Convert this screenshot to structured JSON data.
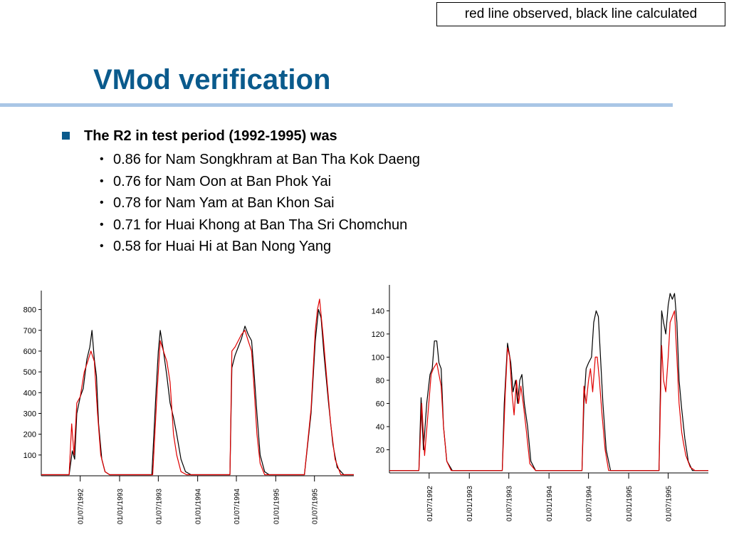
{
  "legend_note": "red line observed, black line calculated",
  "slide_title": "VMod verification",
  "main_bullet": "The R2 in test period (1992-1995) was",
  "sub_bullets": [
    "0.86 for Nam Songkhram at Ban Tha Kok Daeng",
    "0.76 for Nam Oon at Ban Phok Yai",
    "0.78 for Nam Yam at Ban Khon Sai",
    "0.71 for Huai Khong at Ban Tha Sri Chomchun",
    "0.58 for Huai Hi at Ban Nong Yang"
  ],
  "colors": {
    "title": "#0a5a8c",
    "rule": "#a9c6e6",
    "observed": "#e00000",
    "calculated": "#000000"
  },
  "chart_data": [
    {
      "type": "line",
      "title": "",
      "xlabel": "",
      "ylabel": "",
      "ylim": [
        0,
        850
      ],
      "yticks": [
        100,
        200,
        300,
        400,
        500,
        600,
        700,
        800
      ],
      "xlim": [
        "1992-01-01",
        "1996-01-01"
      ],
      "xticks": [
        "01/07/1992",
        "01/01/1993",
        "01/07/1993",
        "01/01/1994",
        "01/07/1994",
        "01/01/1995",
        "01/07/1995"
      ],
      "grid": false,
      "series": [
        {
          "color": "#000000",
          "points": [
            [
              "1992-01-01",
              5
            ],
            [
              "1992-05-10",
              5
            ],
            [
              "1992-05-25",
              120
            ],
            [
              "1992-06-05",
              80
            ],
            [
              "1992-06-15",
              300
            ],
            [
              "1992-07-01",
              380
            ],
            [
              "1992-07-15",
              420
            ],
            [
              "1992-08-01",
              560
            ],
            [
              "1992-08-15",
              620
            ],
            [
              "1992-08-25",
              700
            ],
            [
              "1992-09-05",
              560
            ],
            [
              "1992-09-15",
              480
            ],
            [
              "1992-09-25",
              250
            ],
            [
              "1992-10-10",
              80
            ],
            [
              "1992-10-25",
              20
            ],
            [
              "1992-11-15",
              5
            ],
            [
              "1993-06-01",
              5
            ],
            [
              "1993-06-20",
              400
            ],
            [
              "1993-07-01",
              600
            ],
            [
              "1993-07-10",
              700
            ],
            [
              "1993-07-25",
              600
            ],
            [
              "1993-08-10",
              480
            ],
            [
              "1993-08-25",
              350
            ],
            [
              "1993-09-10",
              280
            ],
            [
              "1993-09-25",
              200
            ],
            [
              "1993-10-15",
              80
            ],
            [
              "1993-11-05",
              20
            ],
            [
              "1993-12-01",
              5
            ],
            [
              "1994-06-01",
              5
            ],
            [
              "1994-06-10",
              520
            ],
            [
              "1994-06-25",
              580
            ],
            [
              "1994-07-10",
              620
            ],
            [
              "1994-07-25",
              660
            ],
            [
              "1994-08-10",
              720
            ],
            [
              "1994-08-25",
              680
            ],
            [
              "1994-09-10",
              650
            ],
            [
              "1994-09-20",
              520
            ],
            [
              "1994-10-05",
              300
            ],
            [
              "1994-10-20",
              100
            ],
            [
              "1994-11-10",
              20
            ],
            [
              "1994-12-01",
              5
            ],
            [
              "1995-05-15",
              5
            ],
            [
              "1995-06-15",
              300
            ],
            [
              "1995-07-05",
              650
            ],
            [
              "1995-07-20",
              800
            ],
            [
              "1995-08-01",
              760
            ],
            [
              "1995-08-15",
              580
            ],
            [
              "1995-09-05",
              350
            ],
            [
              "1995-09-25",
              150
            ],
            [
              "1995-10-15",
              40
            ],
            [
              "1995-11-15",
              5
            ],
            [
              "1996-01-01",
              5
            ]
          ]
        },
        {
          "color": "#e00000",
          "points": [
            [
              "1992-01-01",
              5
            ],
            [
              "1992-05-10",
              5
            ],
            [
              "1992-05-22",
              250
            ],
            [
              "1992-06-02",
              100
            ],
            [
              "1992-06-15",
              350
            ],
            [
              "1992-07-01",
              380
            ],
            [
              "1992-07-20",
              500
            ],
            [
              "1992-08-05",
              550
            ],
            [
              "1992-08-20",
              600
            ],
            [
              "1992-09-05",
              550
            ],
            [
              "1992-09-20",
              300
            ],
            [
              "1992-10-05",
              100
            ],
            [
              "1992-10-25",
              20
            ],
            [
              "1992-11-15",
              5
            ],
            [
              "1993-06-05",
              5
            ],
            [
              "1993-06-25",
              400
            ],
            [
              "1993-07-10",
              650
            ],
            [
              "1993-07-25",
              600
            ],
            [
              "1993-08-10",
              550
            ],
            [
              "1993-08-25",
              450
            ],
            [
              "1993-09-10",
              200
            ],
            [
              "1993-09-25",
              100
            ],
            [
              "1993-10-15",
              20
            ],
            [
              "1993-11-10",
              5
            ],
            [
              "1994-06-01",
              5
            ],
            [
              "1994-06-10",
              600
            ],
            [
              "1994-06-25",
              620
            ],
            [
              "1994-07-10",
              650
            ],
            [
              "1994-07-25",
              680
            ],
            [
              "1994-08-10",
              700
            ],
            [
              "1994-08-25",
              650
            ],
            [
              "1994-09-10",
              600
            ],
            [
              "1994-09-20",
              450
            ],
            [
              "1994-10-05",
              200
            ],
            [
              "1994-10-20",
              60
            ],
            [
              "1994-11-10",
              5
            ],
            [
              "1995-05-15",
              5
            ],
            [
              "1995-06-15",
              320
            ],
            [
              "1995-07-05",
              700
            ],
            [
              "1995-07-15",
              800
            ],
            [
              "1995-07-25",
              850
            ],
            [
              "1995-08-10",
              680
            ],
            [
              "1995-08-25",
              500
            ],
            [
              "1995-09-15",
              250
            ],
            [
              "1995-10-05",
              80
            ],
            [
              "1995-11-01",
              5
            ],
            [
              "1996-01-01",
              5
            ]
          ]
        }
      ]
    },
    {
      "type": "line",
      "title": "",
      "xlabel": "",
      "ylabel": "",
      "ylim": [
        0,
        155
      ],
      "yticks": [
        20,
        40,
        60,
        80,
        100,
        120,
        140
      ],
      "xlim": [
        "1992-01-01",
        "1996-01-01"
      ],
      "xticks": [
        "01/07/1992",
        "01/01/1993",
        "01/07/1993",
        "01/01/1994",
        "01/07/1994",
        "01/01/1995",
        "01/07/1995"
      ],
      "grid": false,
      "series": [
        {
          "color": "#000000",
          "points": [
            [
              "1992-01-01",
              2
            ],
            [
              "1992-05-15",
              2
            ],
            [
              "1992-05-25",
              65
            ],
            [
              "1992-06-05",
              20
            ],
            [
              "1992-06-20",
              60
            ],
            [
              "1992-07-05",
              85
            ],
            [
              "1992-07-15",
              90
            ],
            [
              "1992-07-25",
              114
            ],
            [
              "1992-08-05",
              114
            ],
            [
              "1992-08-15",
              95
            ],
            [
              "1992-08-25",
              90
            ],
            [
              "1992-09-05",
              40
            ],
            [
              "1992-09-20",
              10
            ],
            [
              "1992-10-15",
              2
            ],
            [
              "1993-06-01",
              2
            ],
            [
              "1993-06-10",
              60
            ],
            [
              "1993-06-25",
              112
            ],
            [
              "1993-07-10",
              95
            ],
            [
              "1993-07-20",
              70
            ],
            [
              "1993-08-01",
              80
            ],
            [
              "1993-08-10",
              60
            ],
            [
              "1993-08-20",
              80
            ],
            [
              "1993-08-30",
              85
            ],
            [
              "1993-09-10",
              60
            ],
            [
              "1993-09-25",
              40
            ],
            [
              "1993-10-10",
              10
            ],
            [
              "1993-11-01",
              2
            ],
            [
              "1994-06-01",
              2
            ],
            [
              "1994-06-10",
              60
            ],
            [
              "1994-06-20",
              90
            ],
            [
              "1994-07-01",
              95
            ],
            [
              "1994-07-15",
              100
            ],
            [
              "1994-07-25",
              130
            ],
            [
              "1994-08-05",
              140
            ],
            [
              "1994-08-15",
              135
            ],
            [
              "1994-08-25",
              100
            ],
            [
              "1994-09-05",
              60
            ],
            [
              "1994-09-20",
              20
            ],
            [
              "1994-10-10",
              2
            ],
            [
              "1995-05-20",
              2
            ],
            [
              "1995-06-01",
              140
            ],
            [
              "1995-06-10",
              130
            ],
            [
              "1995-06-20",
              120
            ],
            [
              "1995-07-01",
              145
            ],
            [
              "1995-07-10",
              155
            ],
            [
              "1995-07-20",
              150
            ],
            [
              "1995-07-30",
              155
            ],
            [
              "1995-08-10",
              130
            ],
            [
              "1995-08-20",
              80
            ],
            [
              "1995-09-01",
              55
            ],
            [
              "1995-09-15",
              30
            ],
            [
              "1995-10-01",
              10
            ],
            [
              "1995-10-20",
              2
            ],
            [
              "1996-01-01",
              2
            ]
          ]
        },
        {
          "color": "#e00000",
          "points": [
            [
              "1992-01-01",
              2
            ],
            [
              "1992-05-15",
              2
            ],
            [
              "1992-05-28",
              60
            ],
            [
              "1992-06-10",
              15
            ],
            [
              "1992-06-25",
              50
            ],
            [
              "1992-07-10",
              85
            ],
            [
              "1992-07-20",
              90
            ],
            [
              "1992-08-05",
              95
            ],
            [
              "1992-08-15",
              85
            ],
            [
              "1992-08-25",
              75
            ],
            [
              "1992-09-05",
              40
            ],
            [
              "1992-09-20",
              10
            ],
            [
              "1992-10-10",
              2
            ],
            [
              "1993-06-01",
              2
            ],
            [
              "1993-06-15",
              70
            ],
            [
              "1993-06-25",
              108
            ],
            [
              "1993-07-05",
              100
            ],
            [
              "1993-07-15",
              70
            ],
            [
              "1993-07-25",
              50
            ],
            [
              "1993-08-05",
              80
            ],
            [
              "1993-08-15",
              60
            ],
            [
              "1993-08-25",
              75
            ],
            [
              "1993-09-05",
              60
            ],
            [
              "1993-09-20",
              35
            ],
            [
              "1993-10-05",
              8
            ],
            [
              "1993-11-01",
              2
            ],
            [
              "1994-06-01",
              2
            ],
            [
              "1994-06-10",
              75
            ],
            [
              "1994-06-20",
              60
            ],
            [
              "1994-07-01",
              80
            ],
            [
              "1994-07-10",
              90
            ],
            [
              "1994-07-20",
              70
            ],
            [
              "1994-08-01",
              100
            ],
            [
              "1994-08-10",
              100
            ],
            [
              "1994-08-20",
              80
            ],
            [
              "1994-09-01",
              50
            ],
            [
              "1994-09-15",
              20
            ],
            [
              "1994-10-01",
              2
            ],
            [
              "1995-05-20",
              2
            ],
            [
              "1995-06-01",
              110
            ],
            [
              "1995-06-10",
              80
            ],
            [
              "1995-06-20",
              70
            ],
            [
              "1995-07-01",
              100
            ],
            [
              "1995-07-10",
              130
            ],
            [
              "1995-07-20",
              135
            ],
            [
              "1995-07-30",
              140
            ],
            [
              "1995-08-10",
              100
            ],
            [
              "1995-08-20",
              60
            ],
            [
              "1995-09-01",
              35
            ],
            [
              "1995-09-10",
              25
            ],
            [
              "1995-09-20",
              15
            ],
            [
              "1995-10-10",
              5
            ],
            [
              "1995-11-01",
              2
            ],
            [
              "1996-01-01",
              2
            ]
          ]
        }
      ]
    }
  ]
}
